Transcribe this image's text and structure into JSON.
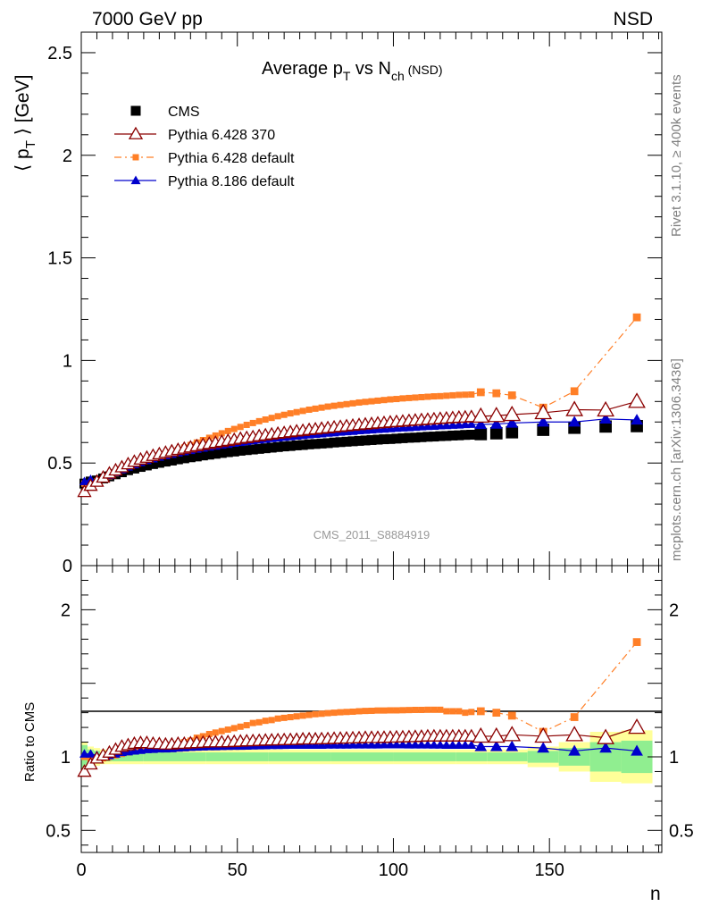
{
  "header": {
    "left": "7000 GeV pp",
    "right": "NSD"
  },
  "side_labels": {
    "rivet": "Rivet 3.1.10, ≥ 400k events",
    "mcplots": "mcplots.cern.ch [arXiv:1306.3436]"
  },
  "title": {
    "main": "Average p",
    "sub1": "T",
    "mid": " vs N",
    "sub2": "ch",
    "tail": " (NSD)"
  },
  "ylabel": {
    "open": "⟨ p",
    "sub": "T",
    "close": " ⟩ [GeV]"
  },
  "ratio_ylabel": "Ratio to CMS",
  "xlabel": "n",
  "watermark": "CMS_2011_S8884919",
  "legend": [
    {
      "label": "CMS",
      "color": "#000000",
      "marker": "square"
    },
    {
      "label": "Pythia 6.428 370",
      "color": "#8b0000",
      "marker": "open-triangle"
    },
    {
      "label": "Pythia 6.428 default",
      "color": "#ff7f27",
      "marker": "small-square",
      "dash": true
    },
    {
      "label": "Pythia 8.186 default",
      "color": "#0000cc",
      "marker": "triangle"
    }
  ],
  "chart_data": [
    {
      "type": "scatter",
      "title": "Average pT vs Nch (NSD)",
      "xlabel": "n",
      "ylabel": "⟨ pT ⟩ [GeV]",
      "xlim": [
        0,
        186
      ],
      "ylim": [
        0,
        2.6
      ],
      "y_ticks": [
        "0",
        "0.5",
        "1",
        "1.5",
        "2",
        "2.5"
      ],
      "x": [
        1,
        3,
        5,
        7,
        9,
        11,
        13,
        15,
        17,
        19,
        21,
        23,
        25,
        27,
        29,
        31,
        33,
        35,
        37,
        39,
        41,
        43,
        45,
        47,
        49,
        51,
        53,
        55,
        57,
        59,
        61,
        63,
        65,
        67,
        69,
        71,
        73,
        75,
        77,
        79,
        81,
        83,
        85,
        87,
        89,
        91,
        93,
        95,
        97,
        99,
        101,
        103,
        105,
        107,
        109,
        111,
        113,
        115,
        117,
        119,
        121,
        123,
        125,
        128,
        133,
        138,
        148,
        158,
        168,
        178
      ],
      "series": [
        {
          "name": "CMS",
          "values": [
            0.4,
            0.41,
            0.415,
            0.425,
            0.435,
            0.445,
            0.455,
            0.465,
            0.473,
            0.481,
            0.488,
            0.495,
            0.501,
            0.507,
            0.512,
            0.518,
            0.523,
            0.528,
            0.532,
            0.537,
            0.541,
            0.545,
            0.549,
            0.553,
            0.556,
            0.56,
            0.563,
            0.566,
            0.569,
            0.572,
            0.575,
            0.578,
            0.581,
            0.583,
            0.586,
            0.588,
            0.591,
            0.593,
            0.595,
            0.597,
            0.6,
            0.602,
            0.604,
            0.606,
            0.608,
            0.61,
            0.612,
            0.614,
            0.616,
            0.617,
            0.619,
            0.621,
            0.623,
            0.624,
            0.626,
            0.628,
            0.629,
            0.631,
            0.632,
            0.634,
            0.635,
            0.637,
            0.638,
            0.641,
            0.645,
            0.65,
            0.662,
            0.672,
            0.678,
            0.68
          ]
        },
        {
          "name": "Pythia 6.428 370",
          "values": [
            0.36,
            0.39,
            0.41,
            0.43,
            0.45,
            0.465,
            0.48,
            0.495,
            0.507,
            0.518,
            0.527,
            0.536,
            0.544,
            0.551,
            0.558,
            0.565,
            0.571,
            0.577,
            0.583,
            0.589,
            0.594,
            0.599,
            0.604,
            0.609,
            0.614,
            0.619,
            0.623,
            0.627,
            0.632,
            0.636,
            0.64,
            0.644,
            0.647,
            0.651,
            0.655,
            0.658,
            0.662,
            0.665,
            0.668,
            0.671,
            0.674,
            0.677,
            0.68,
            0.683,
            0.686,
            0.689,
            0.691,
            0.694,
            0.696,
            0.699,
            0.701,
            0.703,
            0.706,
            0.708,
            0.71,
            0.712,
            0.714,
            0.716,
            0.718,
            0.72,
            0.722,
            0.723,
            0.725,
            0.728,
            0.731,
            0.736,
            0.745,
            0.76,
            0.758,
            0.8
          ]
        },
        {
          "name": "Pythia 6.428 default",
          "values": [
            0.4,
            0.4,
            0.41,
            0.42,
            0.435,
            0.45,
            0.465,
            0.48,
            0.492,
            0.503,
            0.513,
            0.523,
            0.533,
            0.543,
            0.553,
            0.564,
            0.576,
            0.588,
            0.6,
            0.612,
            0.623,
            0.634,
            0.645,
            0.656,
            0.666,
            0.676,
            0.686,
            0.695,
            0.704,
            0.712,
            0.72,
            0.728,
            0.735,
            0.742,
            0.748,
            0.754,
            0.76,
            0.765,
            0.77,
            0.775,
            0.779,
            0.783,
            0.787,
            0.791,
            0.795,
            0.798,
            0.801,
            0.804,
            0.807,
            0.81,
            0.812,
            0.815,
            0.817,
            0.819,
            0.821,
            0.823,
            0.825,
            0.826,
            0.828,
            0.83,
            0.832,
            0.833,
            0.834,
            0.845,
            0.84,
            0.83,
            0.77,
            0.85,
            null,
            1.21
          ]
        },
        {
          "name": "Pythia 8.186 default",
          "values": [
            0.41,
            0.42,
            0.42,
            0.43,
            0.44,
            0.455,
            0.468,
            0.481,
            0.492,
            0.503,
            0.512,
            0.521,
            0.529,
            0.536,
            0.543,
            0.55,
            0.556,
            0.562,
            0.568,
            0.573,
            0.578,
            0.583,
            0.588,
            0.592,
            0.597,
            0.601,
            0.605,
            0.609,
            0.613,
            0.616,
            0.62,
            0.623,
            0.626,
            0.629,
            0.632,
            0.635,
            0.638,
            0.641,
            0.643,
            0.646,
            0.648,
            0.651,
            0.653,
            0.655,
            0.658,
            0.66,
            0.662,
            0.664,
            0.666,
            0.668,
            0.67,
            0.672,
            0.673,
            0.675,
            0.677,
            0.679,
            0.68,
            0.682,
            0.683,
            0.685,
            0.686,
            0.688,
            0.689,
            0.688,
            0.69,
            0.695,
            0.7,
            0.7,
            0.715,
            0.71
          ]
        }
      ]
    },
    {
      "type": "scatter",
      "ylabel": "Ratio to CMS",
      "xlabel": "n",
      "xlim": [
        0,
        186
      ],
      "ylim": [
        0.35,
        2.3
      ],
      "y_ticks": [
        "0.5",
        "1",
        "2"
      ],
      "x_ticks": [
        "0",
        "50",
        "100",
        "150"
      ],
      "reference_line": 1,
      "x": [
        1,
        3,
        5,
        7,
        9,
        11,
        13,
        15,
        17,
        19,
        21,
        23,
        25,
        27,
        29,
        31,
        33,
        35,
        37,
        39,
        41,
        43,
        45,
        47,
        49,
        51,
        53,
        55,
        57,
        59,
        61,
        63,
        65,
        67,
        69,
        71,
        73,
        75,
        77,
        79,
        81,
        83,
        85,
        87,
        89,
        91,
        93,
        95,
        97,
        99,
        101,
        103,
        105,
        107,
        109,
        111,
        113,
        115,
        117,
        119,
        121,
        123,
        125,
        128,
        133,
        138,
        148,
        158,
        168,
        178
      ],
      "series": [
        {
          "name": "Pythia 6.428 370",
          "values": [
            0.9,
            0.95,
            0.99,
            1.01,
            1.03,
            1.05,
            1.07,
            1.08,
            1.09,
            1.095,
            1.095,
            1.09,
            1.088,
            1.085,
            1.085,
            1.09,
            1.09,
            1.093,
            1.095,
            1.097,
            1.1,
            1.1,
            1.1,
            1.101,
            1.103,
            1.105,
            1.107,
            1.108,
            1.11,
            1.112,
            1.113,
            1.114,
            1.115,
            1.116,
            1.117,
            1.12,
            1.12,
            1.12,
            1.121,
            1.122,
            1.124,
            1.125,
            1.126,
            1.127,
            1.128,
            1.13,
            1.13,
            1.13,
            1.131,
            1.132,
            1.133,
            1.134,
            1.135,
            1.136,
            1.138,
            1.14,
            1.14,
            1.14,
            1.14,
            1.14,
            1.14,
            1.14,
            1.14,
            1.14,
            1.14,
            1.15,
            1.14,
            1.15,
            1.13,
            1.2
          ]
        },
        {
          "name": "Pythia 6.428 default",
          "values": [
            1,
            0.98,
            0.99,
            0.99,
            1,
            1.01,
            1.02,
            1.03,
            1.04,
            1.045,
            1.05,
            1.055,
            1.065,
            1.07,
            1.08,
            1.09,
            1.1,
            1.11,
            1.13,
            1.14,
            1.155,
            1.165,
            1.175,
            1.185,
            1.195,
            1.205,
            1.215,
            1.23,
            1.235,
            1.245,
            1.25,
            1.26,
            1.265,
            1.27,
            1.275,
            1.28,
            1.285,
            1.29,
            1.293,
            1.297,
            1.3,
            1.303,
            1.305,
            1.307,
            1.31,
            1.312,
            1.313,
            1.315,
            1.315,
            1.316,
            1.316,
            1.317,
            1.318,
            1.319,
            1.319,
            1.32,
            1.32,
            1.32,
            1.31,
            1.31,
            1.31,
            1.3,
            1.305,
            1.31,
            1.3,
            1.28,
            1.17,
            1.27,
            null,
            1.78
          ]
        },
        {
          "name": "Pythia 8.186 default",
          "values": [
            1.02,
            1.02,
            1.01,
            1.01,
            1.01,
            1.02,
            1.03,
            1.035,
            1.04,
            1.045,
            1.05,
            1.052,
            1.055,
            1.055,
            1.056,
            1.06,
            1.062,
            1.065,
            1.067,
            1.068,
            1.07,
            1.07,
            1.071,
            1.072,
            1.073,
            1.073,
            1.074,
            1.075,
            1.076,
            1.077,
            1.078,
            1.078,
            1.079,
            1.08,
            1.08,
            1.08,
            1.08,
            1.08,
            1.08,
            1.081,
            1.081,
            1.081,
            1.081,
            1.082,
            1.082,
            1.082,
            1.082,
            1.082,
            1.083,
            1.083,
            1.083,
            1.083,
            1.082,
            1.082,
            1.082,
            1.082,
            1.081,
            1.081,
            1.08,
            1.08,
            1.08,
            1.08,
            1.08,
            1.07,
            1.07,
            1.07,
            1.06,
            1.04,
            1.06,
            1.04
          ]
        }
      ],
      "uncertainty_bands": {
        "x_edges": [
          0,
          2,
          4,
          6,
          8,
          10,
          20,
          40,
          60,
          80,
          100,
          120,
          130,
          143,
          153,
          163,
          173,
          183
        ],
        "inner": [
          0.08,
          0.05,
          0.04,
          0.03,
          0.03,
          0.03,
          0.03,
          0.03,
          0.03,
          0.03,
          0.03,
          0.03,
          0.03,
          0.04,
          0.06,
          0.1,
          0.11
        ],
        "outer": [
          0.1,
          0.07,
          0.06,
          0.05,
          0.05,
          0.05,
          0.05,
          0.05,
          0.05,
          0.05,
          0.05,
          0.05,
          0.05,
          0.07,
          0.1,
          0.17,
          0.18
        ]
      }
    }
  ]
}
